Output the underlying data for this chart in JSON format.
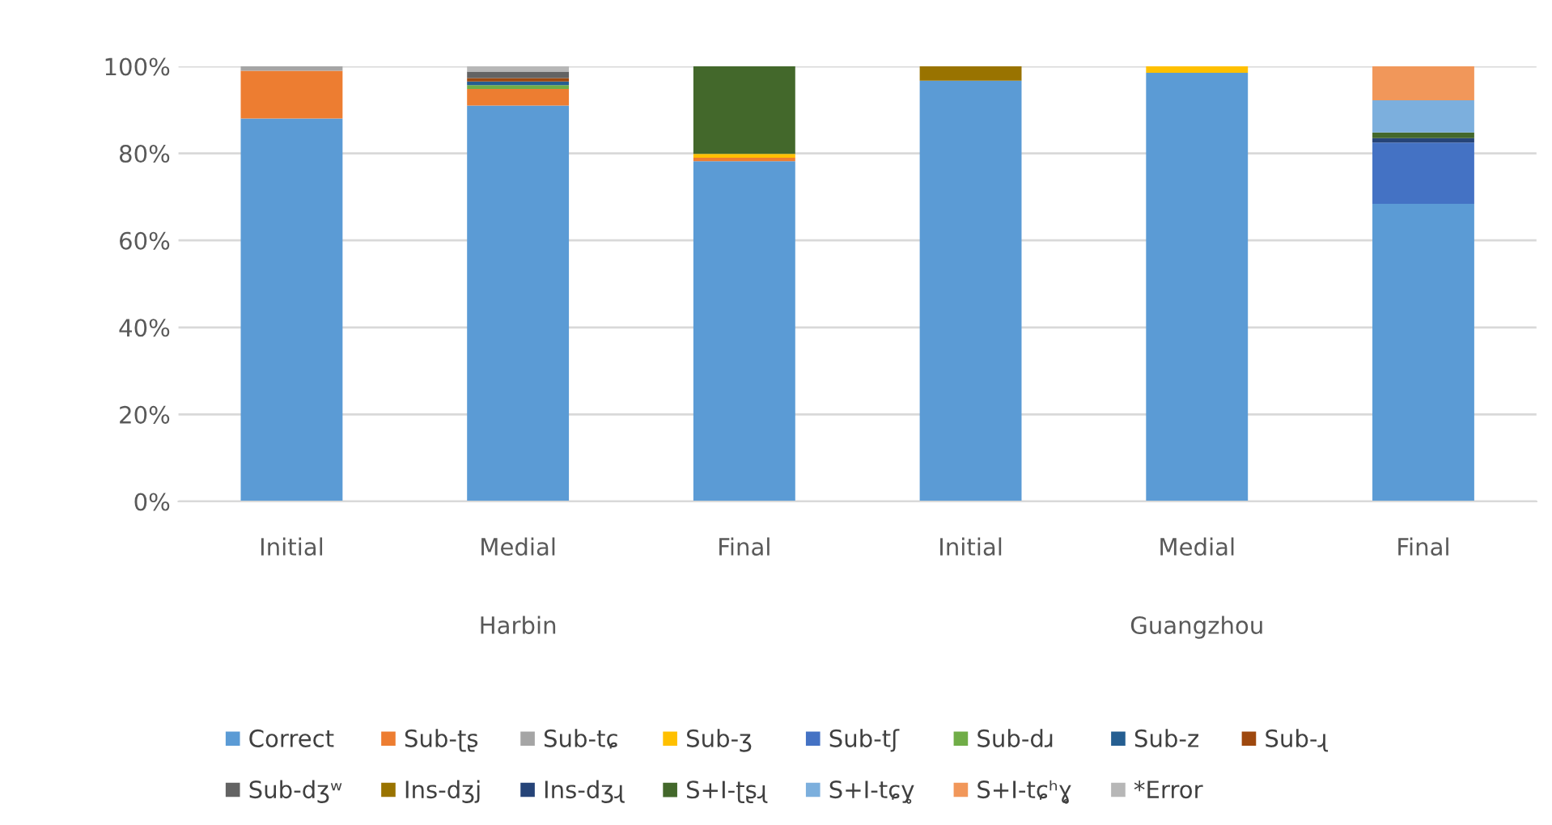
{
  "chart_data": {
    "type": "bar",
    "stacked": true,
    "categories": [
      "Initial",
      "Medial",
      "Final",
      "Initial",
      "Medial",
      "Final"
    ],
    "annotations": [
      "Harbin",
      "Guangzhou"
    ],
    "series": [
      {
        "name": "Correct",
        "color": "#5b9bd5",
        "values": [
          88,
          91,
          78.2,
          96.7,
          98.5,
          68.4
        ]
      },
      {
        "name": "Sub-ʈʂ",
        "color": "#ed7d31",
        "values": [
          11,
          3.8,
          0.8,
          null,
          null,
          null
        ]
      },
      {
        "name": "Sub-tɕ",
        "color": "#a5a5a5",
        "values": [
          1,
          null,
          null,
          null,
          null,
          null
        ]
      },
      {
        "name": "Sub-ʒ",
        "color": "#ffc000",
        "values": [
          null,
          null,
          0.9,
          null,
          1.5,
          null
        ]
      },
      {
        "name": "Sub-tʃ",
        "color": "#4472c4",
        "values": [
          null,
          null,
          null,
          null,
          null,
          14.1
        ]
      },
      {
        "name": "Sub-dɹ",
        "color": "#70ad47",
        "values": [
          null,
          0.9,
          null,
          null,
          null,
          null
        ]
      },
      {
        "name": "Sub-z",
        "color": "#255e91",
        "values": [
          null,
          0.8,
          null,
          null,
          null,
          null
        ]
      },
      {
        "name": "Sub-ɻ",
        "color": "#9e480e",
        "values": [
          null,
          0.8,
          null,
          null,
          null,
          null
        ]
      },
      {
        "name": "Sub-dʒʷ",
        "color": "#636363",
        "values": [
          null,
          1.5,
          null,
          null,
          null,
          null
        ]
      },
      {
        "name": "Ins-dʒj",
        "color": "#997300",
        "values": [
          null,
          null,
          null,
          3.3,
          null,
          null
        ]
      },
      {
        "name": "Ins-dʒɻ",
        "color": "#264478",
        "values": [
          null,
          null,
          null,
          null,
          null,
          1.0
        ]
      },
      {
        "name": "S+I-ʈʂɻ",
        "color": "#43682b",
        "values": [
          null,
          null,
          20.1,
          null,
          null,
          1.3
        ]
      },
      {
        "name": "S+I-tɕy̥",
        "color": "#7cafdd",
        "values": [
          null,
          null,
          null,
          null,
          null,
          7.4
        ]
      },
      {
        "name": "S+I-tɕʰɣ̥",
        "color": "#f1975a",
        "values": [
          null,
          null,
          null,
          null,
          null,
          7.8
        ]
      },
      {
        "name": "*Error",
        "color": "#b7b7b7",
        "values": [
          null,
          1.2,
          null,
          null,
          null,
          null
        ]
      }
    ],
    "ylim": [
      0,
      100
    ],
    "yticks": [
      {
        "value": 0,
        "label": "0%"
      },
      {
        "value": 20,
        "label": "20%"
      },
      {
        "value": 40,
        "label": "40%"
      },
      {
        "value": 60,
        "label": "60%"
      },
      {
        "value": 80,
        "label": "80%"
      },
      {
        "value": 100,
        "label": "100%"
      }
    ],
    "grid": "y",
    "legend": "bottom"
  }
}
